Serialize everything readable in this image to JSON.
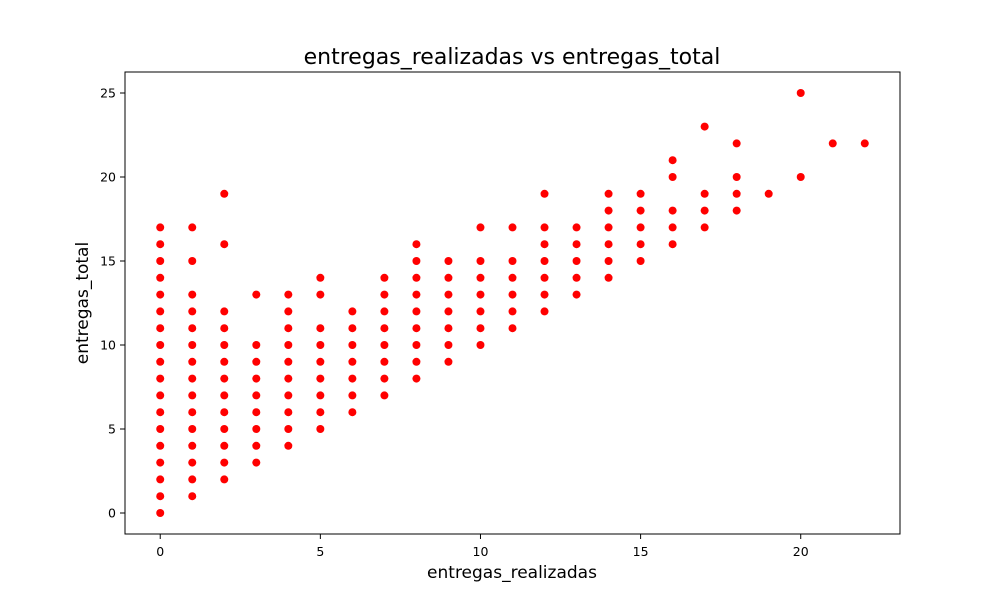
{
  "chart_data": {
    "type": "scatter",
    "title": "entregas_realizadas vs entregas_total",
    "xlabel": "entregas_realizadas",
    "ylabel": "entregas_total",
    "xlim": [
      -1.1,
      23.1
    ],
    "ylim": [
      -1.25,
      26.25
    ],
    "xticks": [
      0,
      5,
      10,
      15,
      20
    ],
    "yticks": [
      0,
      5,
      10,
      15,
      20,
      25
    ],
    "grid": false,
    "marker_color": "#ff0000",
    "points": [
      [
        0,
        0
      ],
      [
        0,
        1
      ],
      [
        0,
        2
      ],
      [
        0,
        3
      ],
      [
        0,
        4
      ],
      [
        0,
        5
      ],
      [
        0,
        6
      ],
      [
        0,
        7
      ],
      [
        0,
        8
      ],
      [
        0,
        9
      ],
      [
        0,
        10
      ],
      [
        0,
        11
      ],
      [
        0,
        12
      ],
      [
        0,
        13
      ],
      [
        0,
        14
      ],
      [
        0,
        15
      ],
      [
        0,
        16
      ],
      [
        0,
        17
      ],
      [
        1,
        1
      ],
      [
        1,
        2
      ],
      [
        1,
        3
      ],
      [
        1,
        4
      ],
      [
        1,
        5
      ],
      [
        1,
        6
      ],
      [
        1,
        7
      ],
      [
        1,
        8
      ],
      [
        1,
        9
      ],
      [
        1,
        10
      ],
      [
        1,
        11
      ],
      [
        1,
        12
      ],
      [
        1,
        13
      ],
      [
        1,
        15
      ],
      [
        1,
        17
      ],
      [
        2,
        2
      ],
      [
        2,
        3
      ],
      [
        2,
        4
      ],
      [
        2,
        5
      ],
      [
        2,
        6
      ],
      [
        2,
        7
      ],
      [
        2,
        8
      ],
      [
        2,
        9
      ],
      [
        2,
        10
      ],
      [
        2,
        11
      ],
      [
        2,
        12
      ],
      [
        2,
        16
      ],
      [
        2,
        19
      ],
      [
        3,
        3
      ],
      [
        3,
        4
      ],
      [
        3,
        5
      ],
      [
        3,
        6
      ],
      [
        3,
        7
      ],
      [
        3,
        8
      ],
      [
        3,
        9
      ],
      [
        3,
        10
      ],
      [
        3,
        13
      ],
      [
        4,
        4
      ],
      [
        4,
        5
      ],
      [
        4,
        6
      ],
      [
        4,
        7
      ],
      [
        4,
        8
      ],
      [
        4,
        9
      ],
      [
        4,
        10
      ],
      [
        4,
        11
      ],
      [
        4,
        12
      ],
      [
        4,
        13
      ],
      [
        5,
        5
      ],
      [
        5,
        6
      ],
      [
        5,
        7
      ],
      [
        5,
        8
      ],
      [
        5,
        9
      ],
      [
        5,
        10
      ],
      [
        5,
        11
      ],
      [
        5,
        13
      ],
      [
        5,
        14
      ],
      [
        6,
        6
      ],
      [
        6,
        7
      ],
      [
        6,
        8
      ],
      [
        6,
        9
      ],
      [
        6,
        10
      ],
      [
        6,
        11
      ],
      [
        6,
        12
      ],
      [
        7,
        7
      ],
      [
        7,
        8
      ],
      [
        7,
        9
      ],
      [
        7,
        10
      ],
      [
        7,
        11
      ],
      [
        7,
        12
      ],
      [
        7,
        13
      ],
      [
        7,
        14
      ],
      [
        8,
        8
      ],
      [
        8,
        9
      ],
      [
        8,
        10
      ],
      [
        8,
        11
      ],
      [
        8,
        12
      ],
      [
        8,
        13
      ],
      [
        8,
        14
      ],
      [
        8,
        15
      ],
      [
        8,
        16
      ],
      [
        9,
        9
      ],
      [
        9,
        10
      ],
      [
        9,
        11
      ],
      [
        9,
        12
      ],
      [
        9,
        13
      ],
      [
        9,
        14
      ],
      [
        9,
        15
      ],
      [
        10,
        10
      ],
      [
        10,
        11
      ],
      [
        10,
        12
      ],
      [
        10,
        13
      ],
      [
        10,
        14
      ],
      [
        10,
        15
      ],
      [
        10,
        17
      ],
      [
        11,
        11
      ],
      [
        11,
        12
      ],
      [
        11,
        13
      ],
      [
        11,
        14
      ],
      [
        11,
        15
      ],
      [
        11,
        17
      ],
      [
        12,
        12
      ],
      [
        12,
        13
      ],
      [
        12,
        14
      ],
      [
        12,
        15
      ],
      [
        12,
        16
      ],
      [
        12,
        17
      ],
      [
        12,
        19
      ],
      [
        13,
        13
      ],
      [
        13,
        14
      ],
      [
        13,
        15
      ],
      [
        13,
        16
      ],
      [
        13,
        17
      ],
      [
        14,
        14
      ],
      [
        14,
        15
      ],
      [
        14,
        16
      ],
      [
        14,
        17
      ],
      [
        14,
        18
      ],
      [
        14,
        19
      ],
      [
        15,
        15
      ],
      [
        15,
        16
      ],
      [
        15,
        17
      ],
      [
        15,
        18
      ],
      [
        15,
        19
      ],
      [
        16,
        16
      ],
      [
        16,
        17
      ],
      [
        16,
        18
      ],
      [
        16,
        20
      ],
      [
        16,
        21
      ],
      [
        17,
        17
      ],
      [
        17,
        18
      ],
      [
        17,
        19
      ],
      [
        17,
        23
      ],
      [
        18,
        18
      ],
      [
        18,
        19
      ],
      [
        18,
        20
      ],
      [
        18,
        22
      ],
      [
        19,
        19
      ],
      [
        20,
        20
      ],
      [
        20,
        25
      ],
      [
        21,
        22
      ],
      [
        22,
        22
      ]
    ]
  }
}
